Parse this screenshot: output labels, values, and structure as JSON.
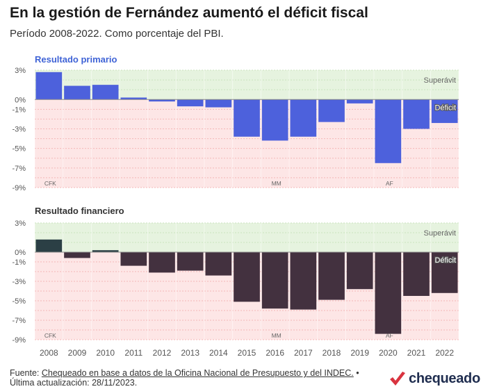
{
  "header": {
    "title": "En la gestión de Fernández aumentó el déficit fiscal",
    "subtitle": "Período 2008-2022. Como porcentaje del PBI."
  },
  "colors": {
    "primary_bar": "#4d61dc",
    "financial_bar": "#43313f",
    "financial_bar_positive": "#2b3f45",
    "surplus_band": "#e6f3df",
    "deficit_band": "#fde6e6",
    "grid": "#f4b7b7"
  },
  "chart_data": [
    {
      "type": "bar",
      "title": "Resultado primario",
      "categories": [
        "2008",
        "2009",
        "2010",
        "2011",
        "2012",
        "2013",
        "2014",
        "2015",
        "2016",
        "2017",
        "2018",
        "2019",
        "2020",
        "2021",
        "2022"
      ],
      "values": [
        2.8,
        1.4,
        1.5,
        0.2,
        -0.2,
        -0.7,
        -0.8,
        -3.8,
        -4.2,
        -3.8,
        -2.3,
        -0.4,
        -6.5,
        -3.0,
        -2.4
      ],
      "ylim": [
        -9,
        3
      ],
      "yticks": [
        "3%",
        "0%",
        "-1%",
        "-3%",
        "-5%",
        "-7%",
        "-9%"
      ],
      "band_labels": {
        "surplus": "Superávit",
        "deficit": "Déficit"
      },
      "annotations": [
        "CFK",
        "MM",
        "AF"
      ]
    },
    {
      "type": "bar",
      "title": "Resultado financiero",
      "categories": [
        "2008",
        "2009",
        "2010",
        "2011",
        "2012",
        "2013",
        "2014",
        "2015",
        "2016",
        "2017",
        "2018",
        "2019",
        "2020",
        "2021",
        "2022"
      ],
      "values": [
        1.3,
        -0.6,
        0.2,
        -1.4,
        -2.1,
        -1.9,
        -2.4,
        -5.1,
        -5.8,
        -5.9,
        -4.9,
        -3.8,
        -8.4,
        -4.5,
        -4.2
      ],
      "ylim": [
        -9,
        3
      ],
      "yticks": [
        "3%",
        "0%",
        "-1%",
        "-3%",
        "-5%",
        "-7%",
        "-9%"
      ],
      "band_labels": {
        "surplus": "Superávit",
        "deficit": "Déficit"
      },
      "annotations": [
        "CFK",
        "MM",
        "AF"
      ]
    }
  ],
  "footer": {
    "prefix": "Fuente: ",
    "source": "Chequeado en base a datos de la Oficina Nacional de Presupuesto y del INDEC.",
    "updated": " • Última actualización: 28/11/2023."
  },
  "logo": {
    "text": "chequeado"
  }
}
